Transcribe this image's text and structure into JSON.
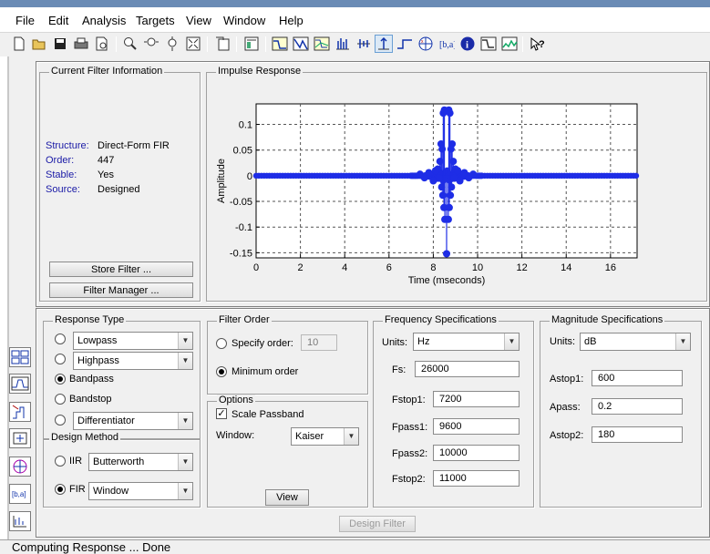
{
  "menubar": [
    "File",
    "Edit",
    "Analysis",
    "Targets",
    "View",
    "Window",
    "Help"
  ],
  "toolbar": {
    "icons": [
      "new-session-icon",
      "open-icon",
      "save-icon",
      "print-icon",
      "print-preview-icon",
      "zoom-in-icon",
      "zoom-x-icon",
      "zoom-y-icon",
      "full-view-icon",
      "new-window-icon",
      "filter-specs-icon",
      "magnitude-response-icon",
      "phase-response-icon",
      "magnitude-phase-icon",
      "group-delay-icon",
      "phase-delay-icon",
      "impulse-response-icon",
      "step-response-icon",
      "pole-zero-icon",
      "filter-coefficients-icon",
      "filter-info-icon",
      "magnitude-estimate-icon",
      "round-off-noise-icon",
      "whats-this-icon"
    ]
  },
  "filter_info": {
    "title": "Current Filter Information",
    "rows": [
      {
        "key": "Structure:",
        "value": "Direct-Form FIR"
      },
      {
        "key": "Order:",
        "value": "447"
      },
      {
        "key": "Stable:",
        "value": "Yes"
      },
      {
        "key": "Source:",
        "value": "Designed"
      }
    ],
    "store_button": "Store Filter ...",
    "manager_button": "Filter Manager ..."
  },
  "impulse": {
    "title": "Impulse Response",
    "ylabel": "Amplitude",
    "xlabel": "Time (mseconds)"
  },
  "chart_data": {
    "type": "line",
    "title": "",
    "xlabel": "Time (mseconds)",
    "ylabel": "Amplitude",
    "xlim": [
      0,
      17.2
    ],
    "ylim": [
      -0.16,
      0.14
    ],
    "xticks": [
      0,
      2,
      4,
      6,
      8,
      10,
      12,
      14,
      16
    ],
    "yticks": [
      0.1,
      0.05,
      0,
      -0.05,
      -0.1,
      -0.15
    ],
    "ytick_labels": [
      "0.1",
      "0.05",
      "0",
      "-0.05",
      "-0.1",
      "-0.15"
    ],
    "grid": true,
    "stems": [
      {
        "x": 8.6,
        "y": -0.152
      },
      {
        "x": 8.45,
        "y": 0.122
      },
      {
        "x": 8.5,
        "y": 0.128
      },
      {
        "x": 8.7,
        "y": 0.128
      },
      {
        "x": 8.75,
        "y": 0.122
      },
      {
        "x": 8.35,
        "y": 0.062
      },
      {
        "x": 8.85,
        "y": 0.062
      },
      {
        "x": 8.4,
        "y": 0.052
      },
      {
        "x": 8.8,
        "y": 0.052
      },
      {
        "x": 8.3,
        "y": 0.028
      },
      {
        "x": 8.9,
        "y": 0.028
      },
      {
        "x": 8.2,
        "y": 0.013
      },
      {
        "x": 9.0,
        "y": 0.013
      },
      {
        "x": 8.1,
        "y": 0.01
      },
      {
        "x": 9.1,
        "y": 0.01
      },
      {
        "x": 8.38,
        "y": -0.022
      },
      {
        "x": 8.82,
        "y": -0.022
      },
      {
        "x": 8.43,
        "y": -0.038
      },
      {
        "x": 8.77,
        "y": -0.038
      },
      {
        "x": 8.48,
        "y": -0.062
      },
      {
        "x": 8.72,
        "y": -0.062
      },
      {
        "x": 8.52,
        "y": -0.085
      },
      {
        "x": 8.68,
        "y": -0.085
      },
      {
        "x": 8.26,
        "y": -0.005
      },
      {
        "x": 8.94,
        "y": -0.005
      },
      {
        "x": 8.0,
        "y": -0.01
      },
      {
        "x": 9.2,
        "y": -0.01
      },
      {
        "x": 7.8,
        "y": 0.006
      },
      {
        "x": 9.4,
        "y": 0.006
      },
      {
        "x": 7.6,
        "y": -0.004
      },
      {
        "x": 9.6,
        "y": -0.004
      },
      {
        "x": 7.4,
        "y": 0.003
      },
      {
        "x": 9.8,
        "y": 0.003
      }
    ],
    "baseline": {
      "x_start": 0,
      "x_end": 17.2,
      "y": 0
    }
  },
  "response_type": {
    "title": "Response Type",
    "options": [
      {
        "kind": "select",
        "value": "Lowpass",
        "selected": false
      },
      {
        "kind": "select",
        "value": "Highpass",
        "selected": false
      },
      {
        "kind": "radio",
        "value": "Bandpass",
        "selected": true
      },
      {
        "kind": "radio",
        "value": "Bandstop",
        "selected": false
      },
      {
        "kind": "select",
        "value": "Differentiator",
        "selected": false
      }
    ]
  },
  "design_method": {
    "title": "Design Method",
    "iir_label": "IIR",
    "iir_value": "Butterworth",
    "fir_label": "FIR",
    "fir_value": "Window"
  },
  "filter_order": {
    "title": "Filter Order",
    "specify_label": "Specify order:",
    "specify_value": "10",
    "minimum_label": "Minimum order"
  },
  "options": {
    "title": "Options",
    "scale_label": "Scale Passband",
    "window_label": "Window:",
    "window_value": "Kaiser",
    "view_button": "View"
  },
  "freq_specs": {
    "title": "Frequency Specifications",
    "units_label": "Units:",
    "units_value": "Hz",
    "fields": [
      {
        "label": "Fs:",
        "value": "26000"
      },
      {
        "label": "Fstop1:",
        "value": "7200"
      },
      {
        "label": "Fpass1:",
        "value": "9600"
      },
      {
        "label": "Fpass2:",
        "value": "10000"
      },
      {
        "label": "Fstop2:",
        "value": "11000"
      }
    ]
  },
  "mag_specs": {
    "title": "Magnitude Specifications",
    "units_label": "Units:",
    "units_value": "dB",
    "fields": [
      {
        "label": "Astop1:",
        "value": "600"
      },
      {
        "label": "Apass:",
        "value": "0.2"
      },
      {
        "label": "Astop2:",
        "value": "180"
      }
    ]
  },
  "design_button": "Design Filter",
  "status": "Computing Response ... Done"
}
